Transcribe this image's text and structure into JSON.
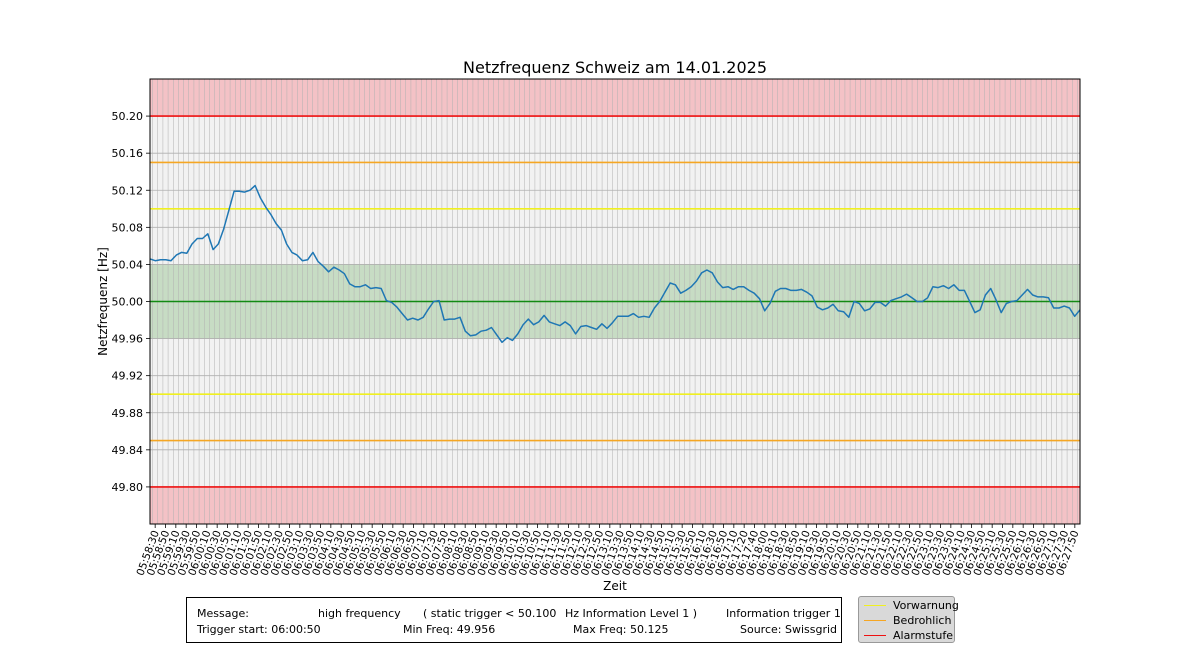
{
  "chart_data": {
    "type": "line",
    "title": "Netzfrequenz Schweiz am 14.01.2025",
    "xlabel": "Zeit",
    "ylabel": "Netzfrequenz [Hz]",
    "ylim": [
      49.76,
      50.24
    ],
    "yticks": [
      "50.20",
      "50.16",
      "50.12",
      "50.08",
      "50.04",
      "50.00",
      "49.96",
      "49.92",
      "49.88",
      "49.84",
      "49.80"
    ],
    "xtick_labels": [
      "05:58:30",
      "05:58:50",
      "05:59:10",
      "05:59:30",
      "05:59:50",
      "06:00:10",
      "06:00:30",
      "06:00:50",
      "06:01:10",
      "06:01:30",
      "06:01:50",
      "06:02:10",
      "06:02:30",
      "06:02:50",
      "06:03:10",
      "06:03:30",
      "06:03:50",
      "06:04:10",
      "06:04:30",
      "06:04:50",
      "06:05:10",
      "06:05:30",
      "06:05:50",
      "06:06:10",
      "06:06:30",
      "06:06:50",
      "06:07:10",
      "06:07:30",
      "06:07:50",
      "06:08:10",
      "06:08:30",
      "06:08:50",
      "06:09:10",
      "06:09:30",
      "06:09:50",
      "06:10:10",
      "06:10:30",
      "06:10:50",
      "06:11:10",
      "06:11:30",
      "06:11:50",
      "06:12:10",
      "06:12:30",
      "06:12:50",
      "06:13:10",
      "06:13:30",
      "06:13:50",
      "06:14:10",
      "06:14:30",
      "06:14:50",
      "06:15:10",
      "06:15:30",
      "06:15:50",
      "06:16:10",
      "06:16:30",
      "06:16:50",
      "06:17:10",
      "06:17:20",
      "06:17:40",
      "06:18:00",
      "06:18:10",
      "06:18:30",
      "06:18:50",
      "06:19:10",
      "06:19:30",
      "06:19:50",
      "06:20:10",
      "06:20:30",
      "06:20:50",
      "06:21:10",
      "06:21:30",
      "06:21:50",
      "06:22:10",
      "06:22:30",
      "06:22:50",
      "06:23:10",
      "06:23:30",
      "06:23:50",
      "06:24:10",
      "06:24:30",
      "06:24:50",
      "06:25:10",
      "06:25:30",
      "06:25:50",
      "06:26:10",
      "06:26:30",
      "06:26:50",
      "06:27:10",
      "06:27:30",
      "06:27:50"
    ],
    "series": [
      {
        "color": "#1f77b4",
        "values": [
          50.046,
          50.044,
          50.045,
          50.045,
          50.044,
          50.05,
          50.053,
          50.052,
          50.062,
          50.068,
          50.068,
          50.073,
          50.056,
          50.062,
          50.078,
          50.098,
          50.119,
          50.119,
          50.118,
          50.12,
          50.125,
          50.112,
          50.102,
          50.094,
          50.084,
          50.077,
          50.062,
          50.053,
          50.05,
          50.044,
          50.045,
          50.053,
          50.043,
          50.038,
          50.032,
          50.037,
          50.034,
          50.03,
          50.019,
          50.016,
          50.016,
          50.018,
          50.014,
          50.015,
          50.014,
          50.001,
          49.999,
          49.994,
          49.987,
          49.98,
          49.982,
          49.98,
          49.983,
          49.992,
          50.0,
          50.001,
          49.98,
          49.981,
          49.981,
          49.983,
          49.968,
          49.963,
          49.964,
          49.968,
          49.969,
          49.972,
          49.964,
          49.956,
          49.961,
          49.958,
          49.965,
          49.975,
          49.981,
          49.975,
          49.978,
          49.985,
          49.978,
          49.976,
          49.974,
          49.978,
          49.974,
          49.965,
          49.973,
          49.974,
          49.972,
          49.97,
          49.976,
          49.971,
          49.977,
          49.984,
          49.984,
          49.984,
          49.987,
          49.983,
          49.984,
          49.983,
          49.993,
          50.0,
          50.01,
          50.02,
          50.018,
          50.009,
          50.012,
          50.016,
          50.022,
          50.031,
          50.034,
          50.031,
          50.021,
          50.015,
          50.016,
          50.013,
          50.016,
          50.016,
          50.012,
          50.009,
          50.003,
          49.99,
          49.998,
          50.011,
          50.014,
          50.014,
          50.012,
          50.012,
          50.013,
          50.01,
          50.006,
          49.994,
          49.991,
          49.993,
          49.997,
          49.99,
          49.989,
          49.983,
          50.0,
          49.998,
          49.99,
          49.992,
          49.999,
          49.999,
          49.995,
          50.001,
          50.003,
          50.005,
          50.008,
          50.004,
          50.0,
          50.0,
          50.004,
          50.016,
          50.015,
          50.017,
          50.014,
          50.018,
          50.012,
          50.012,
          50.0,
          49.988,
          49.991,
          50.007,
          50.014,
          50.002,
          49.988,
          49.998,
          50.0,
          50.001,
          50.007,
          50.013,
          50.007,
          50.005,
          50.005,
          50.004,
          49.993,
          49.993,
          49.995,
          49.993,
          49.984,
          49.991
        ]
      }
    ],
    "bands": [
      {
        "from": 50.2,
        "to": 50.24,
        "color": "#f4c2c6"
      },
      {
        "from": 49.96,
        "to": 50.04,
        "color": "#c7dcc4"
      },
      {
        "from": 49.76,
        "to": 49.8,
        "color": "#f4c2c6"
      }
    ],
    "hlines": [
      {
        "y": 50.2,
        "color": "#ee1111"
      },
      {
        "y": 50.15,
        "color": "#f5a623"
      },
      {
        "y": 50.1,
        "color": "#f0f020"
      },
      {
        "y": 50.0,
        "color": "#138a13"
      },
      {
        "y": 49.9,
        "color": "#f0f020"
      },
      {
        "y": 49.85,
        "color": "#f5a623"
      },
      {
        "y": 49.8,
        "color": "#ee1111"
      }
    ],
    "legend": [
      {
        "label": "Vorwarnung",
        "color": "#f0f020"
      },
      {
        "label": "Bedrohlich",
        "color": "#f5a623"
      },
      {
        "label": "Alarmstufe",
        "color": "#ee1111"
      }
    ],
    "legend_position": "bottom-right",
    "grid": true
  },
  "info": {
    "message_label": "Message:",
    "message_value": "high frequency",
    "trigger_text": "( static trigger < 50.100",
    "level_text": "Hz Information Level 1 )",
    "info_trigger": "Information trigger 1",
    "trigger_start": "Trigger start: 06:00:50",
    "min_freq": "Min Freq: 49.956",
    "max_freq": "Max Freq: 50.125",
    "source": "Source: Swissgrid"
  },
  "colors": {
    "plot_bg": "#f2f2f2",
    "grid": "#b0b0b0",
    "line": "#1f77b4"
  }
}
